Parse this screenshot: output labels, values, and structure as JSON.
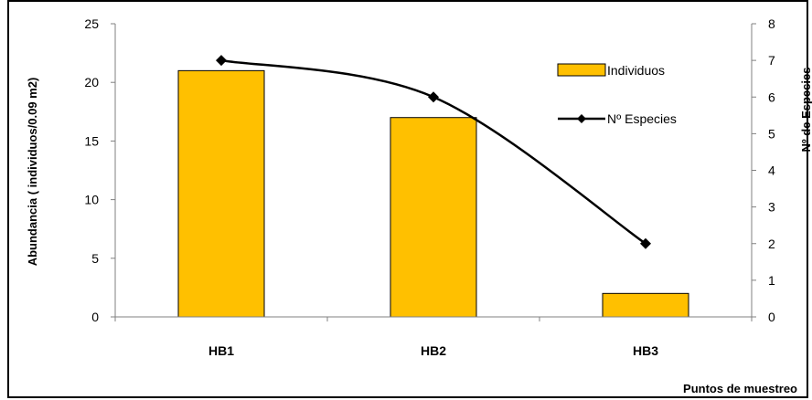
{
  "chart_data": {
    "type": "bar",
    "categories": [
      "HB1",
      "HB2",
      "HB3"
    ],
    "series": [
      {
        "name": "Individuos",
        "type": "bar",
        "axis": "left",
        "values": [
          21,
          17,
          2
        ],
        "color": "#FFC000"
      },
      {
        "name": "Nº Especies",
        "type": "line",
        "axis": "right",
        "values": [
          7,
          6,
          2
        ],
        "color": "#000000"
      }
    ],
    "ylabel_left": "Abundancia  ( individuos/0.09 m2)",
    "ylabel_right": "Nº  de  Especies",
    "xlabel": "Puntos  de  muestreo",
    "ylim_left": [
      0,
      25
    ],
    "yticks_left": [
      "0",
      "5",
      "10",
      "15",
      "20",
      "25"
    ],
    "ylim_right": [
      0,
      8
    ],
    "yticks_right": [
      "0",
      "1",
      "2",
      "3",
      "4",
      "5",
      "6",
      "7",
      "8"
    ],
    "grid": false,
    "legend": "top-right"
  }
}
